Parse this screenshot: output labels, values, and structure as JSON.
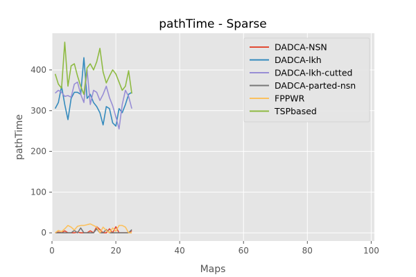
{
  "chart_data": {
    "type": "line",
    "title": "pathTime - Sparse",
    "xlabel": "Maps",
    "ylabel": "pathTime",
    "xlim": [
      0,
      101
    ],
    "ylim": [
      -20,
      490
    ],
    "xticks": [
      0,
      20,
      40,
      60,
      80,
      100
    ],
    "yticks": [
      0,
      100,
      200,
      300,
      400
    ],
    "grid": true,
    "legend_position": "top-right",
    "x": [
      1,
      2,
      3,
      4,
      5,
      6,
      7,
      8,
      9,
      10,
      11,
      12,
      13,
      14,
      15,
      16,
      17,
      18,
      19,
      20,
      21,
      22,
      23,
      24,
      25
    ],
    "series": [
      {
        "name": "DADCA-NSN",
        "color": "#E24A33",
        "values": [
          0,
          2,
          0,
          5,
          0,
          0,
          0,
          2,
          0,
          0,
          0,
          5,
          0,
          15,
          8,
          0,
          0,
          10,
          0,
          15,
          0,
          0,
          0,
          0,
          5
        ]
      },
      {
        "name": "DADCA-lkh",
        "color": "#348ABD",
        "values": [
          305,
          320,
          360,
          315,
          278,
          330,
          345,
          345,
          340,
          430,
          330,
          340,
          320,
          310,
          295,
          265,
          310,
          305,
          270,
          262,
          305,
          295,
          315,
          340,
          345
        ]
      },
      {
        "name": "DADCA-lkh-cutted",
        "color": "#988ED5",
        "values": [
          343,
          350,
          345,
          335,
          337,
          333,
          365,
          370,
          340,
          320,
          400,
          315,
          350,
          345,
          325,
          340,
          360,
          332,
          312,
          285,
          255,
          315,
          350,
          335,
          305
        ]
      },
      {
        "name": "DADCA-parted-nsn",
        "color": "#777777",
        "values": [
          0,
          0,
          0,
          0,
          0,
          0,
          6,
          0,
          12,
          0,
          0,
          0,
          0,
          10,
          0,
          0,
          8,
          0,
          0,
          0,
          0,
          0,
          0,
          0,
          8
        ]
      },
      {
        "name": "FPPWR",
        "color": "#FBC15E",
        "values": [
          0,
          6,
          3,
          10,
          18,
          14,
          7,
          16,
          18,
          18,
          20,
          22,
          18,
          14,
          0,
          14,
          6,
          0,
          12,
          4,
          18,
          18,
          14,
          0,
          0
        ]
      },
      {
        "name": "TSPbased",
        "color": "#8EBA42",
        "values": [
          390,
          365,
          355,
          468,
          360,
          410,
          415,
          385,
          360,
          340,
          405,
          415,
          400,
          420,
          453,
          395,
          368,
          385,
          400,
          390,
          370,
          350,
          360,
          398,
          342
        ]
      }
    ]
  }
}
